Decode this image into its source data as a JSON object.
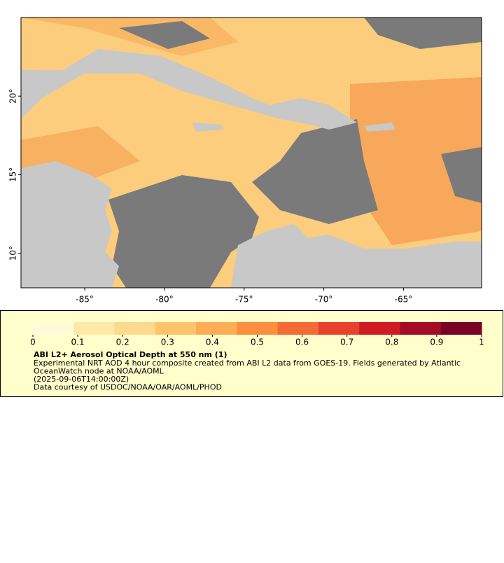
{
  "chart_data": {
    "type": "map",
    "xlim": [
      -89,
      -60.1
    ],
    "ylim": [
      7.8,
      25
    ],
    "xticks": [
      {
        "value": -85,
        "label": "-85°"
      },
      {
        "value": -80,
        "label": "-80°"
      },
      {
        "value": -75,
        "label": "-75°"
      },
      {
        "value": -70,
        "label": "-70°"
      },
      {
        "value": -65,
        "label": "-65°"
      }
    ],
    "yticks": [
      {
        "value": 10,
        "label": "10°"
      },
      {
        "value": 15,
        "label": "15°"
      },
      {
        "value": 20,
        "label": "20°"
      }
    ],
    "colorbar": {
      "range": [
        0,
        1
      ],
      "ticks": [
        0,
        0.1,
        0.2,
        0.3,
        0.4,
        0.5,
        0.6,
        0.7,
        0.8,
        0.9,
        1
      ],
      "colors": [
        "#fffbd8",
        "#fee9a6",
        "#fed98e",
        "#fec46c",
        "#fdae55",
        "#fb8e3f",
        "#f56b35",
        "#e8412d",
        "#cf1b23",
        "#a50b26",
        "#7a0025"
      ]
    },
    "legend": {
      "title": "ABI L2+ Aerosol Optical Depth at 550 nm (1)",
      "lines": [
        "Experimental NRT AOD 4 hour composite created from ABI L2 data from GOES-19. Fields generated by Atlantic",
        "OceanWatch node at NOAA/AOML",
        "(2025-09-06T14:00:00Z)",
        "Data courtesy of USDOC/NOAA/OAR/AOML/PHOD"
      ]
    }
  }
}
